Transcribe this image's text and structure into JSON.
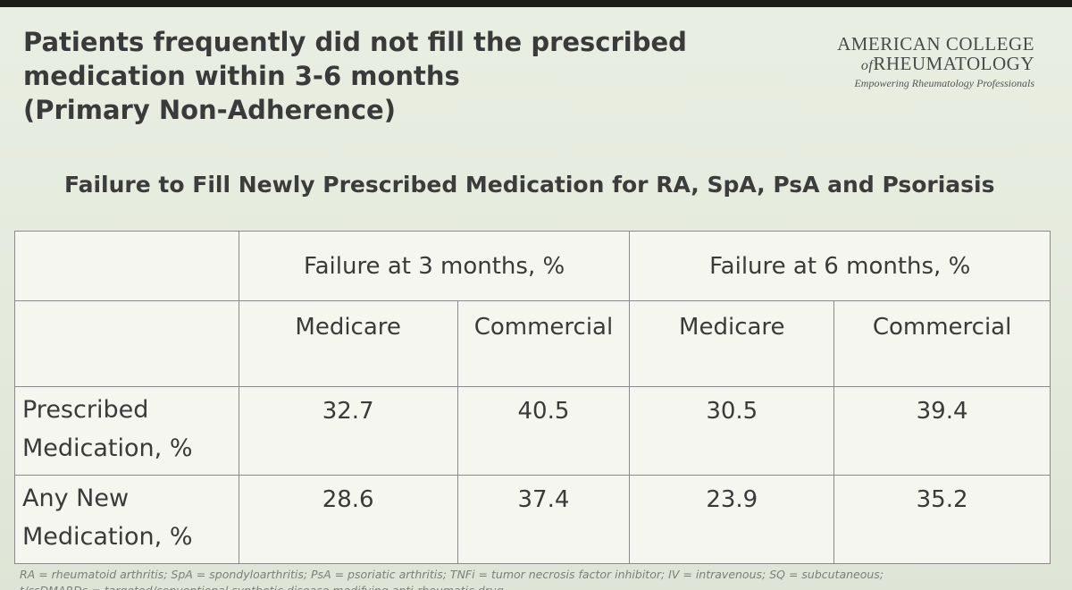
{
  "slide": {
    "title_lines": [
      "Patients frequently did not fill the prescribed",
      "medication within 3-6 months",
      "(Primary Non-Adherence)"
    ],
    "logo": {
      "line1": "AMERICAN COLLEGE",
      "line2_prefix": "of",
      "line2_main": "RHEUMATOLOGY",
      "tagline": "Empowering Rheumatology Professionals"
    },
    "subtitle": "Failure to Fill Newly Prescribed Medication for RA, SpA, PsA and Psoriasis",
    "table": {
      "group_headers": [
        "Failure at 3 months, %",
        "Failure at 6 months, %"
      ],
      "sub_headers": [
        "Medicare",
        "Commercial",
        "Medicare",
        "Commercial"
      ],
      "rows": [
        {
          "label_lines": [
            "Prescribed",
            "Medication, %"
          ],
          "values": [
            "32.7",
            "40.5",
            "30.5",
            "39.4"
          ]
        },
        {
          "label_lines": [
            "Any New",
            "Medication, %"
          ],
          "values": [
            "28.6",
            "37.4",
            "23.9",
            "35.2"
          ]
        }
      ]
    },
    "footnote_lines": [
      "RA = rheumatoid arthritis; SpA = spondyloarthritis; PsA = psoriatic arthritis; TNFi = tumor necrosis factor inhibitor; IV = intravenous; SQ = subcutaneous;",
      "t/csDMARDs = targeted/conventional synthetic disease modifying anti-rheumatic drug"
    ]
  }
}
